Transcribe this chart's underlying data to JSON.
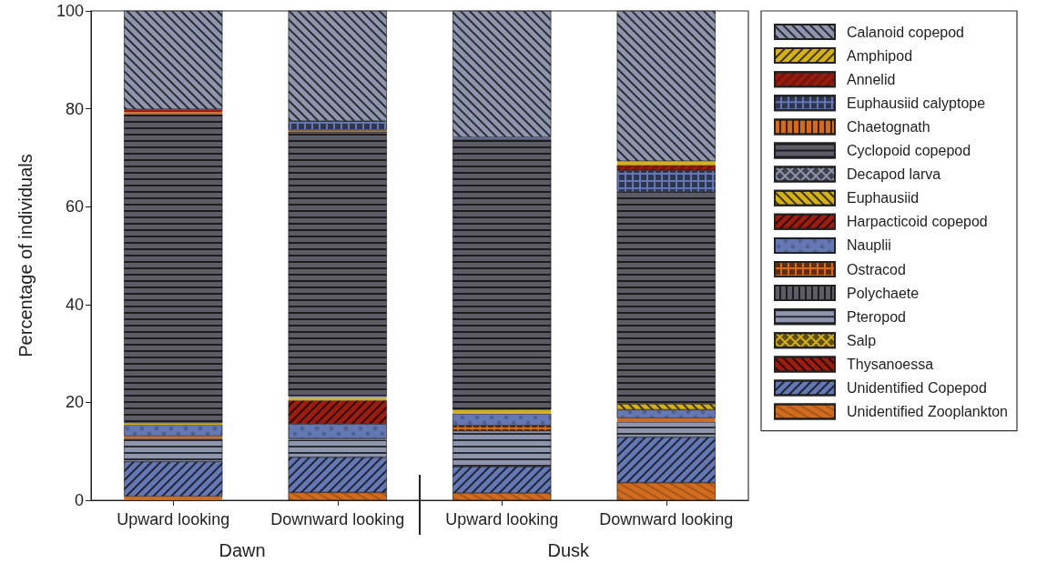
{
  "chart_data": {
    "type": "bar",
    "stacked": true,
    "ylabel": "Percentage of individuals",
    "categories": [
      "Upward looking",
      "Downward looking",
      "Upward looking",
      "Downward looking"
    ],
    "annotations": [
      "Dawn",
      "Dusk"
    ],
    "ylim": [
      0,
      100
    ],
    "yticks": [
      0,
      20,
      40,
      60,
      80,
      100
    ],
    "grid": false,
    "legend": "right",
    "series": [
      {
        "name": "Unidentified Zooplankton",
        "color": "#d06b1f",
        "values": [
          0.8,
          1.6,
          1.5,
          3.6
        ]
      },
      {
        "name": "Unidentified Copepod",
        "color": "#6578b4",
        "values": [
          7.1,
          7.2,
          5.4,
          9.3
        ]
      },
      {
        "name": "Thysanoessa",
        "color": "#9b1c10",
        "values": [
          null,
          null,
          null,
          null
        ]
      },
      {
        "name": "Salp",
        "color": "#d4b01c",
        "values": [
          null,
          null,
          null,
          null
        ]
      },
      {
        "name": "Pteropod",
        "color": "#8e95ad",
        "values": [
          4.7,
          3.5,
          7.3,
          3.1
        ]
      },
      {
        "name": "Polychaete",
        "color": "#5d5c66",
        "values": [
          null,
          0.3,
          null,
          null
        ]
      },
      {
        "name": "Ostracod",
        "color": "#d06b1f",
        "values": [
          0.5,
          null,
          1.1,
          0.8
        ]
      },
      {
        "name": "Nauplii",
        "color": "#6578b4",
        "values": [
          2.3,
          3.0,
          2.4,
          1.7
        ]
      },
      {
        "name": "Harpacticoid copepod",
        "color": "#9b1c10",
        "values": [
          null,
          4.8,
          null,
          null
        ]
      },
      {
        "name": "Euphausiid",
        "color": "#d4b01c",
        "values": [
          0.4,
          0.5,
          0.8,
          1.2
        ]
      },
      {
        "name": "Decapod larva",
        "color": "#8e95ad",
        "values": [
          null,
          0.4,
          null,
          null
        ]
      },
      {
        "name": "Cyclopoid copepod",
        "color": "#5d5c66",
        "values": [
          63.1,
          54.0,
          55.4,
          43.3
        ]
      },
      {
        "name": "Chaetognath",
        "color": "#d06b1f",
        "values": [
          0.4,
          0.3,
          null,
          null
        ]
      },
      {
        "name": "Euphausiid calyptope",
        "color": "#6578b4",
        "values": [
          null,
          1.9,
          0.3,
          4.4
        ]
      },
      {
        "name": "Annelid",
        "color": "#9b1c10",
        "values": [
          0.6,
          null,
          null,
          1.1
        ]
      },
      {
        "name": "Amphipod",
        "color": "#d4b01c",
        "values": [
          null,
          null,
          null,
          0.8
        ]
      },
      {
        "name": "Calanoid copepod",
        "color": "#8e95ad",
        "values": [
          20.1,
          22.5,
          25.8,
          30.7
        ]
      }
    ]
  }
}
